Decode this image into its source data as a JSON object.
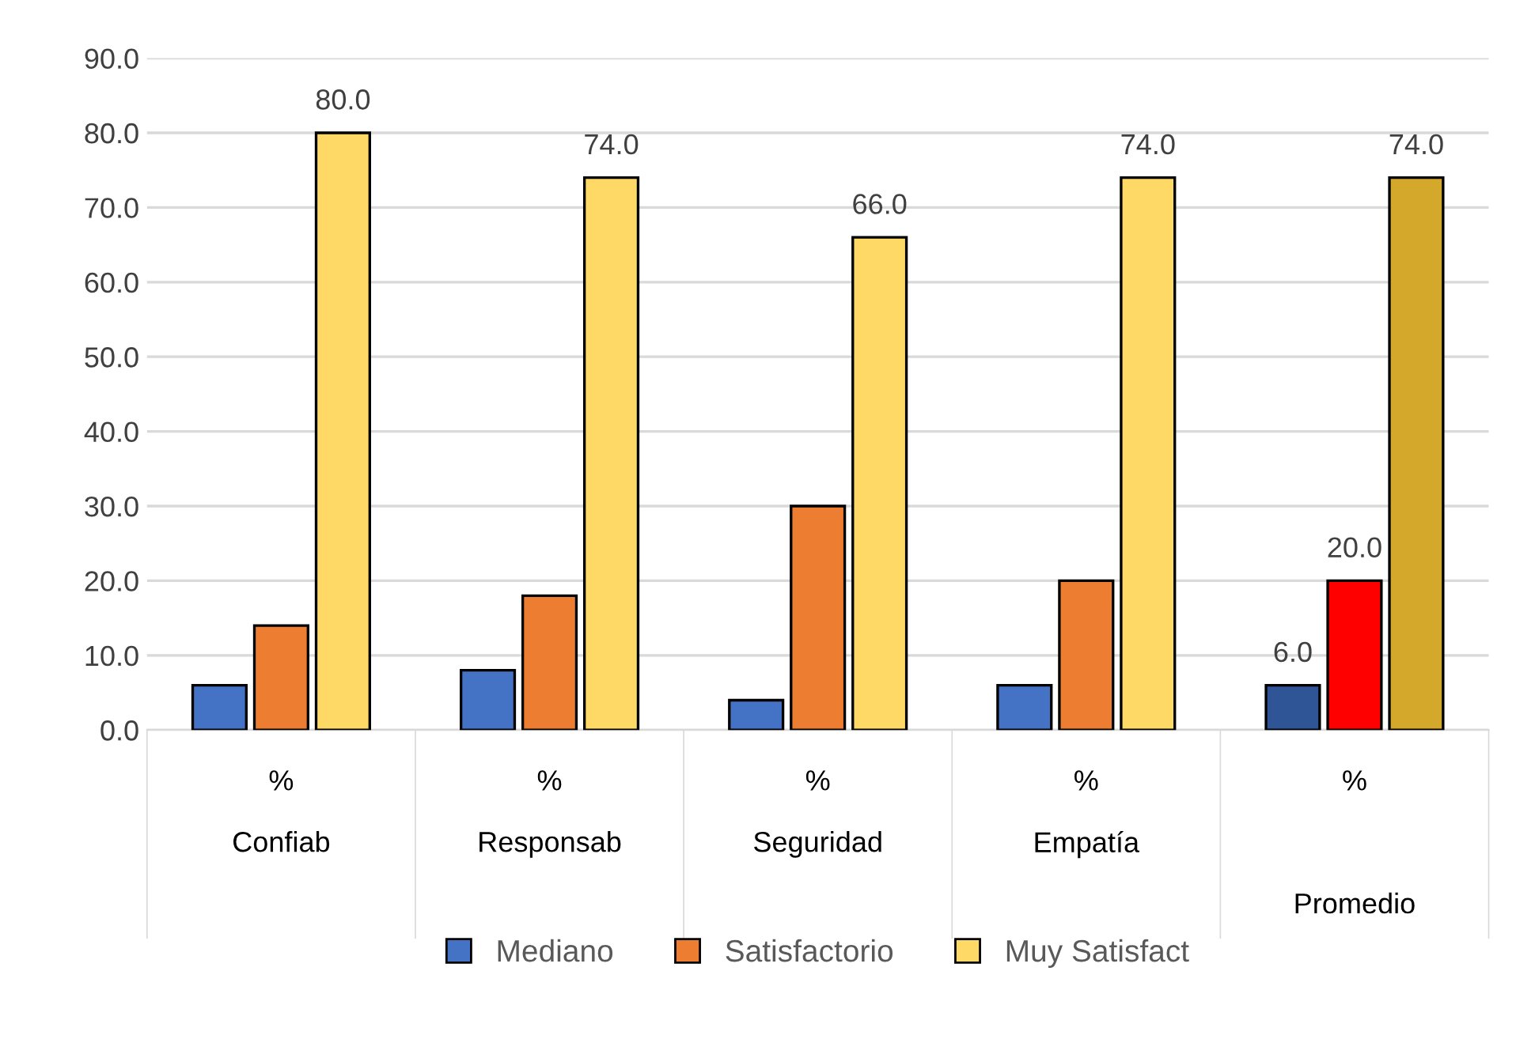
{
  "chart_data": {
    "type": "bar",
    "categories": [
      "%\n\nConfiab",
      "%\n\nResponsab",
      "%\n\nSeguridad",
      "%\n\nEmpatía",
      "%\n\n\n\nPromedio"
    ],
    "series": [
      {
        "name": "Mediano",
        "color": "#4472c4",
        "colors": [
          "#4472c4",
          "#4472c4",
          "#4472c4",
          "#4472c4",
          "#2f5597"
        ],
        "values": [
          6,
          8,
          4,
          6,
          6
        ],
        "value_labels": [
          null,
          null,
          null,
          null,
          "6.0"
        ]
      },
      {
        "name": "Satisfactorio",
        "color": "#ed7d31",
        "colors": [
          "#ed7d31",
          "#ed7d31",
          "#ed7d31",
          "#ed7d31",
          "#ff0000"
        ],
        "values": [
          14,
          18,
          30,
          20,
          20
        ],
        "value_labels": [
          null,
          null,
          null,
          null,
          "20.0"
        ]
      },
      {
        "name": "Muy Satisfact",
        "color": "#ffd966",
        "colors": [
          "#ffd966",
          "#ffd966",
          "#ffd966",
          "#ffd966",
          "#d4a82a"
        ],
        "values": [
          80,
          74,
          66,
          74,
          74
        ],
        "value_labels": [
          "80.0",
          "74.0",
          "66.0",
          "74.0",
          "74.0"
        ]
      }
    ],
    "ylim": [
      0,
      90
    ],
    "yticks": [
      {
        "value": 0,
        "label": "0.0"
      },
      {
        "value": 10,
        "label": "10.0"
      },
      {
        "value": 20,
        "label": "20.0"
      },
      {
        "value": 30,
        "label": "30.0"
      },
      {
        "value": 40,
        "label": "40.0"
      },
      {
        "value": 50,
        "label": "50.0"
      },
      {
        "value": 60,
        "label": "60.0"
      },
      {
        "value": 70,
        "label": "70.0"
      },
      {
        "value": 80,
        "label": "80.0"
      },
      {
        "value": 90,
        "label": "90.0"
      }
    ],
    "grid": "y",
    "legend": "bottom"
  }
}
